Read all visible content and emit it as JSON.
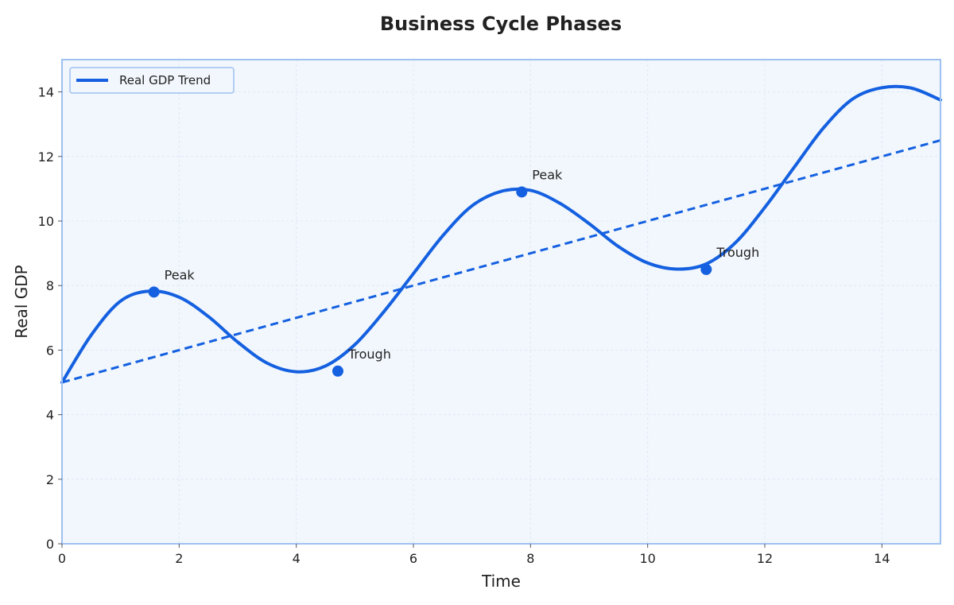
{
  "chart_data": {
    "type": "line",
    "title": "Business Cycle Phases",
    "xlabel": "Time",
    "ylabel": "Real GDP",
    "xlim": [
      0,
      15
    ],
    "ylim": [
      0,
      15
    ],
    "xticks": [
      0,
      2,
      4,
      6,
      8,
      10,
      12,
      14
    ],
    "yticks": [
      0,
      2,
      4,
      6,
      8,
      10,
      12,
      14
    ],
    "grid": true,
    "legend_position": "top-left",
    "series": [
      {
        "name": "Real GDP Trend",
        "style": "solid",
        "color": "#1460e0",
        "x": [
          0,
          0.5,
          1,
          1.5,
          2,
          2.5,
          3,
          3.5,
          4,
          4.5,
          5,
          5.5,
          6,
          6.5,
          7,
          7.5,
          8,
          8.5,
          9,
          9.5,
          10,
          10.5,
          11,
          11.5,
          12,
          12.5,
          13,
          13.5,
          14,
          14.5,
          15
        ],
        "y": [
          5.0,
          6.47,
          7.52,
          7.83,
          7.64,
          7.04,
          6.25,
          5.6,
          5.33,
          5.51,
          6.17,
          7.2,
          8.37,
          9.54,
          10.47,
          10.92,
          10.95,
          10.55,
          9.92,
          9.21,
          8.7,
          8.51,
          8.67,
          9.33,
          10.42,
          11.66,
          12.88,
          13.78,
          14.13,
          14.12,
          13.75
        ]
      },
      {
        "name": "",
        "style": "dashed",
        "color": "#1460e0",
        "x": [
          0,
          15
        ],
        "y": [
          5.0,
          12.5
        ]
      }
    ],
    "markers": [
      {
        "x": 1.57,
        "y": 7.8,
        "label": "Peak"
      },
      {
        "x": 4.71,
        "y": 5.35,
        "label": "Trough"
      },
      {
        "x": 7.85,
        "y": 10.9,
        "label": "Peak"
      },
      {
        "x": 11.0,
        "y": 8.5,
        "label": "Trough"
      }
    ],
    "colors": {
      "line": "#1460e0",
      "plot_background": "#f2f7fd",
      "frame": "#9ec1f2",
      "grid": "#dde8f6"
    }
  }
}
